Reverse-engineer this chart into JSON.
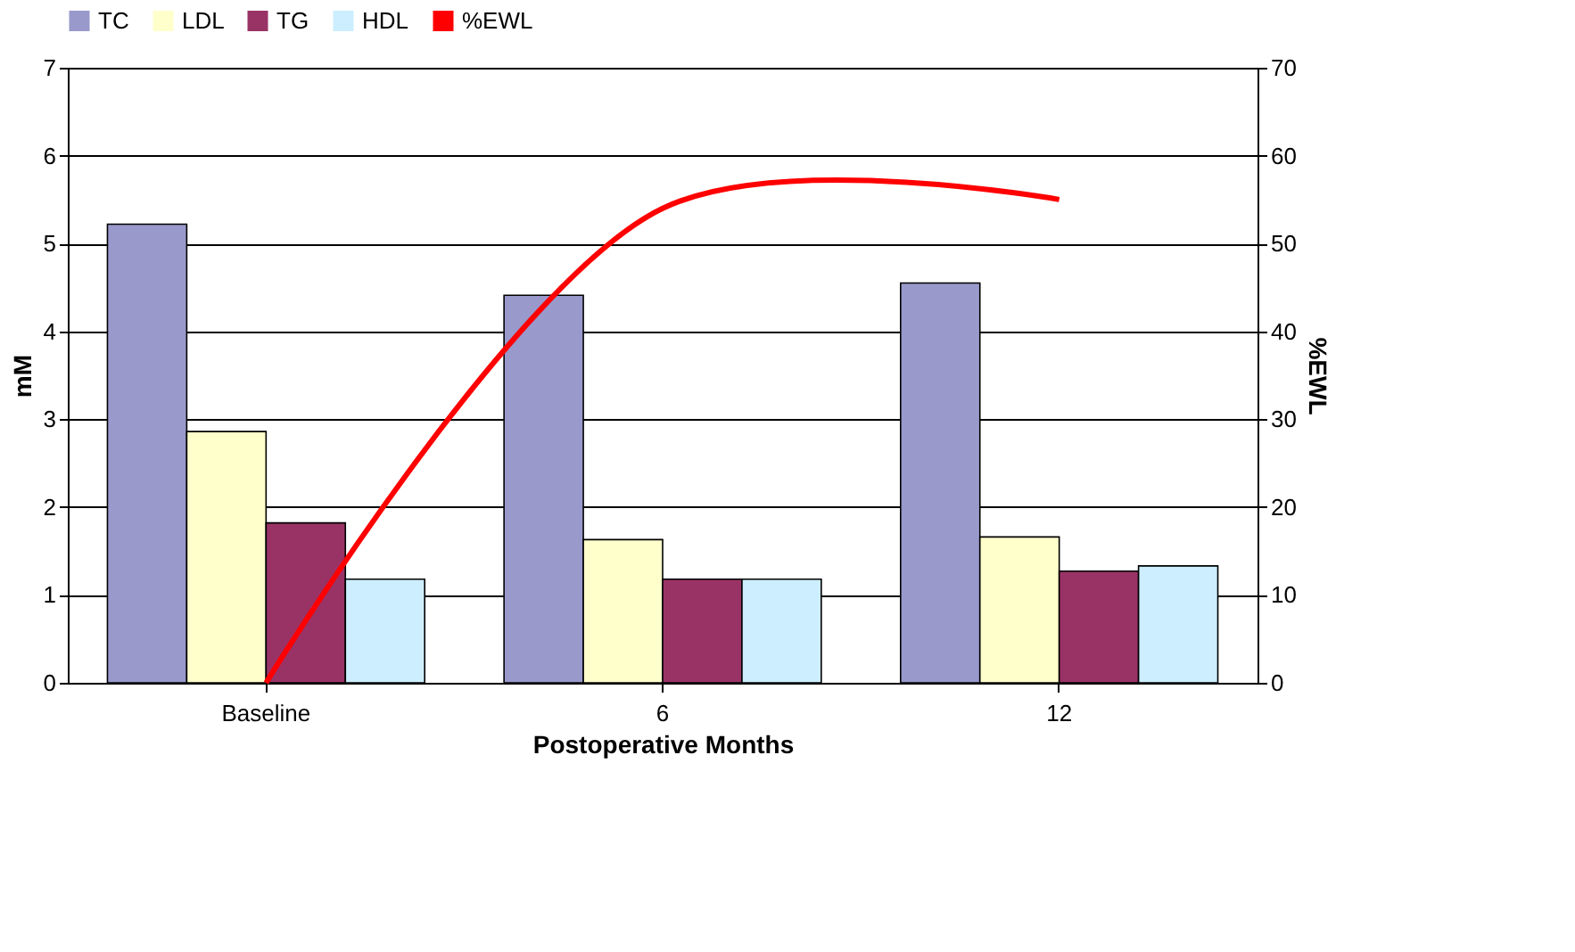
{
  "chart_data": {
    "type": "bar",
    "xlabel": "Postoperative Months",
    "ylabel": "mM",
    "y2label": "%EWL",
    "categories": [
      "Baseline",
      "6",
      "12"
    ],
    "series": [
      {
        "name": "TC",
        "color": "#9999cc",
        "values": [
          5.22,
          4.41,
          4.55
        ]
      },
      {
        "name": "LDL",
        "color": "#ffffcc",
        "values": [
          2.86,
          1.63,
          1.66
        ]
      },
      {
        "name": "TG",
        "color": "#993366",
        "values": [
          1.82,
          1.18,
          1.27
        ]
      },
      {
        "name": "HDL",
        "color": "#cceeff",
        "values": [
          1.18,
          1.18,
          1.33
        ]
      },
      {
        "name": "%EWL",
        "color": "#ff0000",
        "type": "line",
        "axis": "y2",
        "values": [
          0,
          54,
          55
        ]
      }
    ],
    "ylim": [
      0,
      7
    ],
    "yticks": [
      0,
      1,
      2,
      3,
      4,
      5,
      6,
      7
    ],
    "y2lim": [
      0,
      70
    ],
    "y2ticks": [
      0,
      10,
      20,
      30,
      40,
      50,
      60,
      70
    ],
    "grid": "y",
    "legend": "top",
    "marker": "none",
    "line_style": "solid"
  }
}
